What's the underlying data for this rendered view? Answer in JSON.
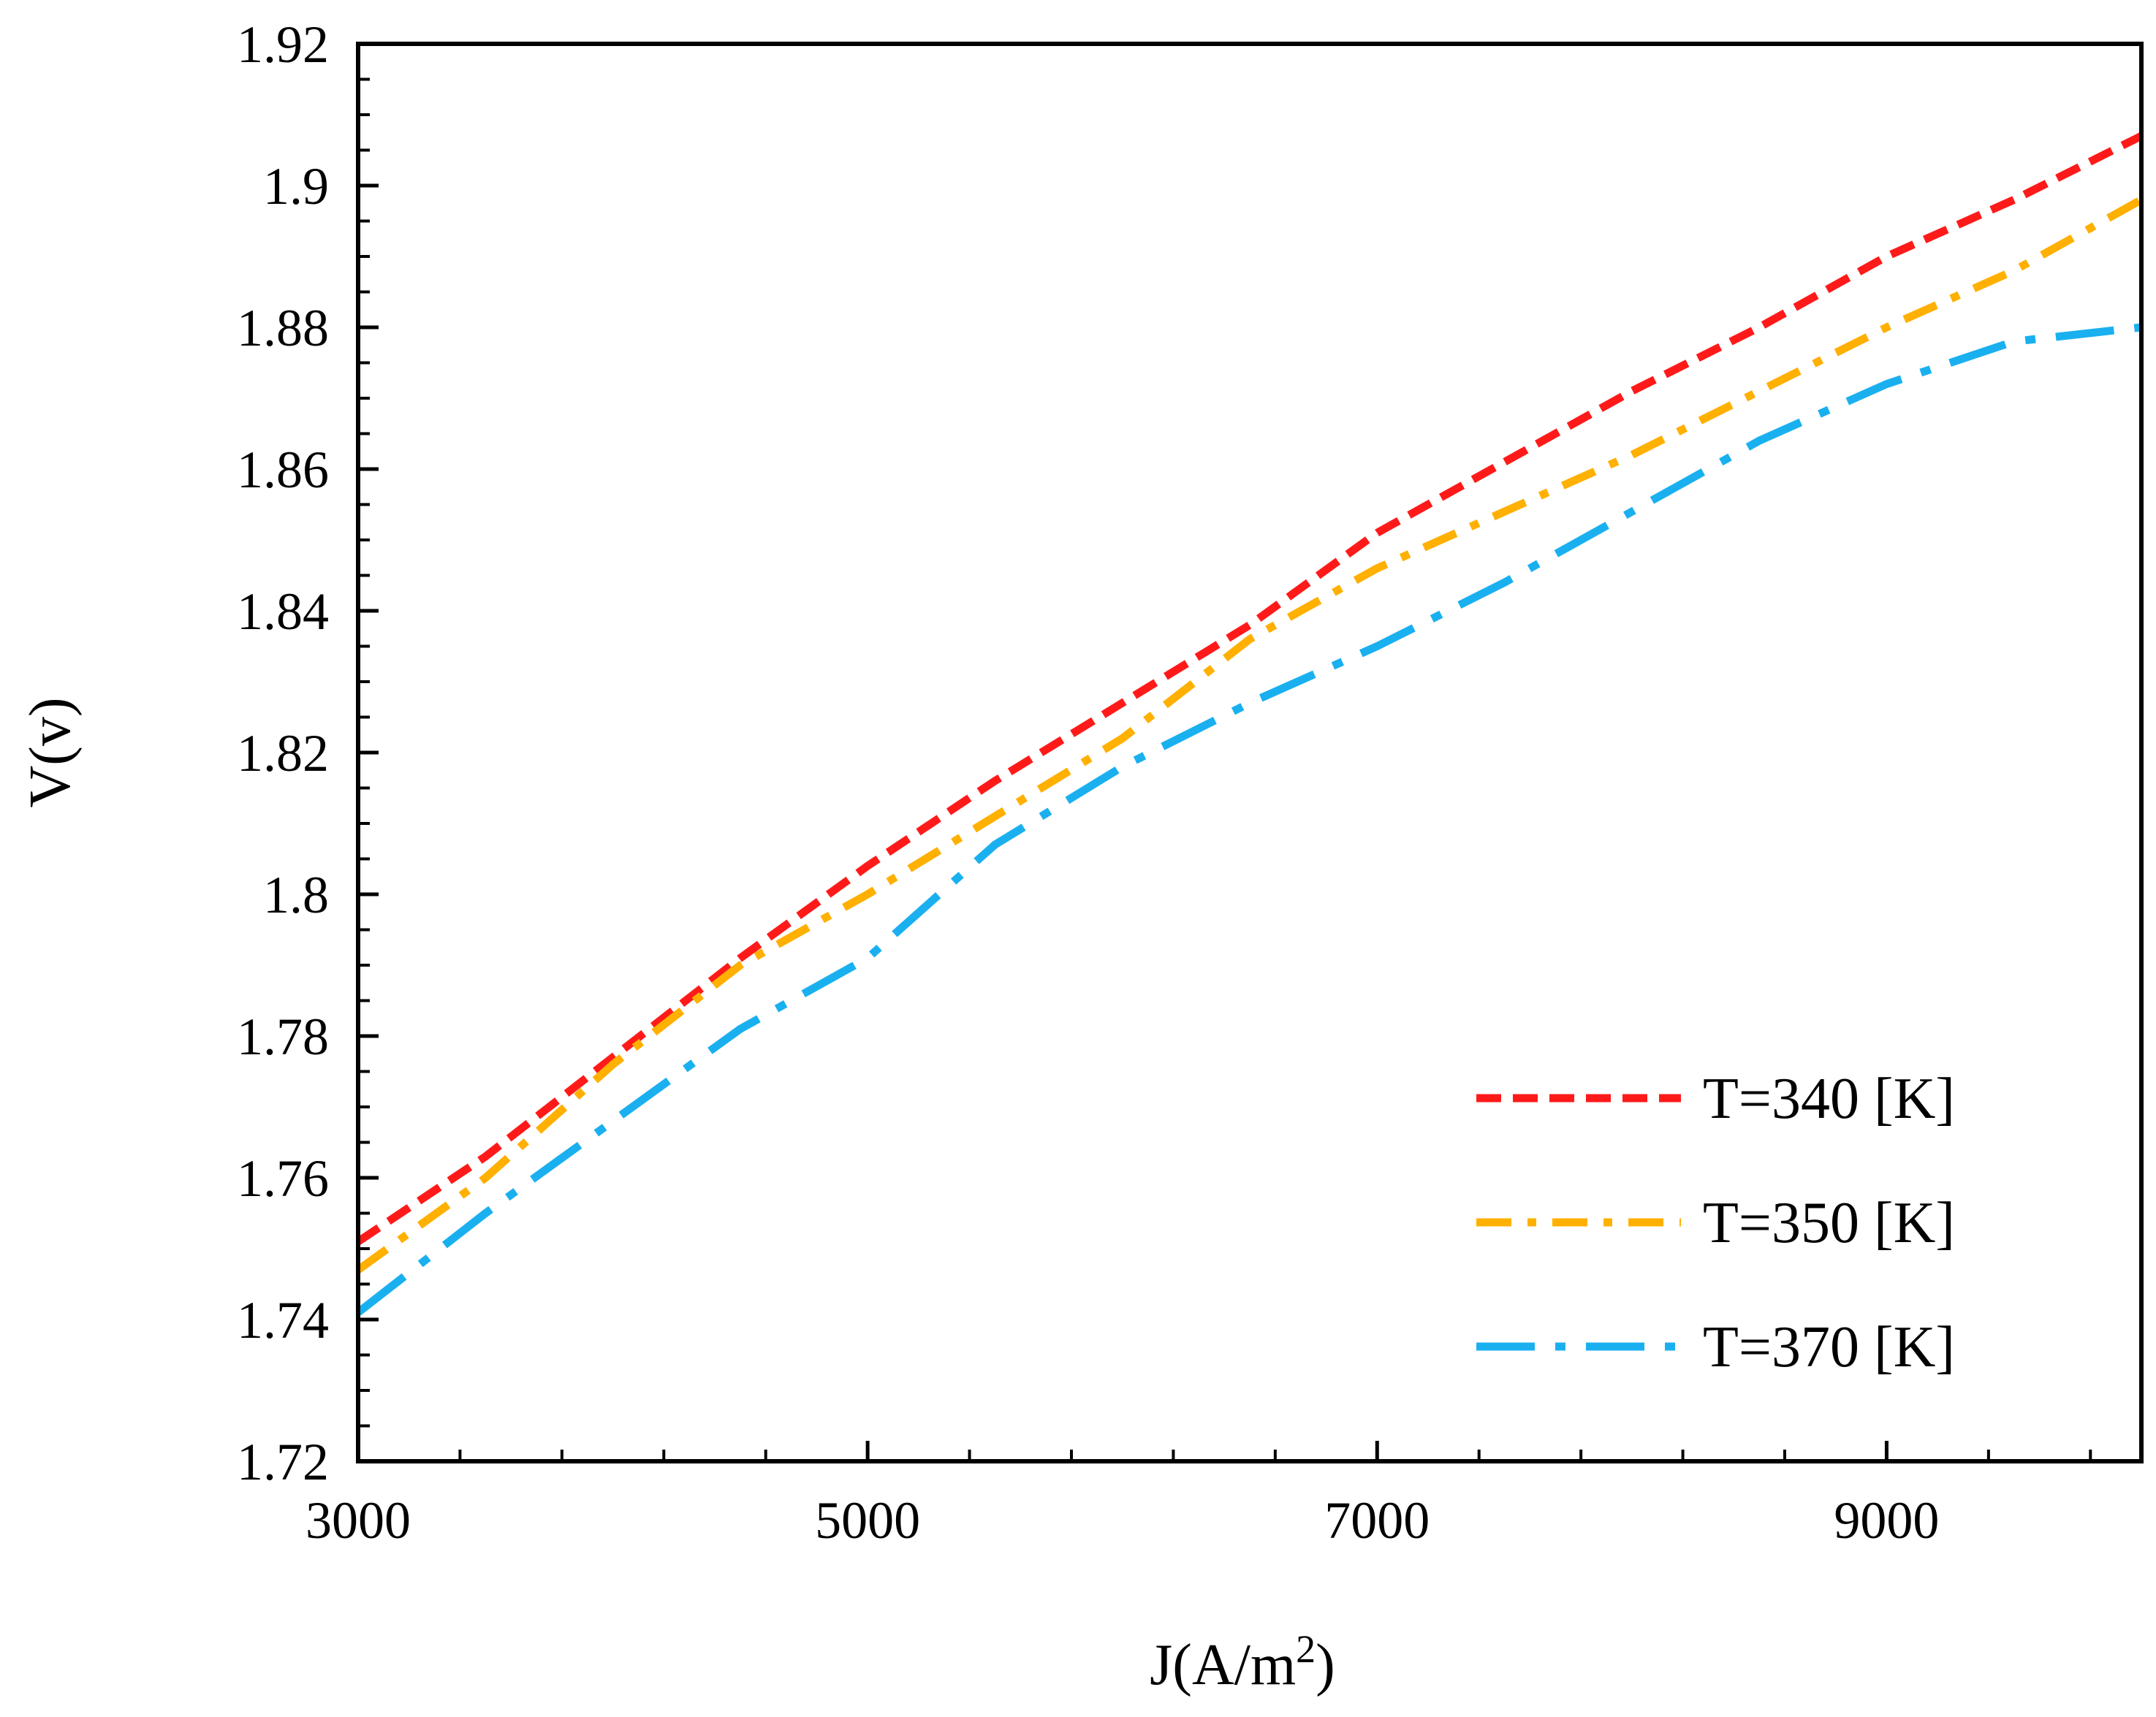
{
  "chart_data": {
    "type": "line",
    "title": "",
    "xlabel": "J(A/m",
    "xlabel_sup": "2",
    "xlabel_close": ")",
    "ylabel": "V(v)",
    "xlim": [
      3000,
      10000
    ],
    "ylim": [
      1.72,
      1.92
    ],
    "x_ticks": [
      3000,
      5000,
      7000,
      9000
    ],
    "x_tick_labels": [
      "3000",
      "5000",
      "7000",
      "9000"
    ],
    "y_ticks": [
      1.72,
      1.74,
      1.76,
      1.78,
      1.8,
      1.82,
      1.84,
      1.86,
      1.88,
      1.9,
      1.92
    ],
    "y_tick_labels": [
      "1.72",
      "1.74",
      "1.76",
      "1.78",
      "1.8",
      "1.82",
      "1.84",
      "1.86",
      "1.88",
      "1.9",
      "1.92"
    ],
    "grid": false,
    "legend_position": "bottom-right",
    "series": [
      {
        "name": "T=340 [K]",
        "color": "#ff1a1a",
        "style": "dashed",
        "x": [
          3000,
          3500,
          4000,
          4500,
          5000,
          5500,
          6000,
          6500,
          7000,
          7500,
          8000,
          8500,
          9000,
          9500,
          10000
        ],
        "y": [
          1.751,
          1.763,
          1.777,
          1.791,
          1.804,
          1.816,
          1.827,
          1.838,
          1.851,
          1.861,
          1.871,
          1.88,
          1.89,
          1.898,
          1.907
        ]
      },
      {
        "name": "T=350 [K]",
        "color": "#ffb000",
        "style": "dash-dot",
        "x": [
          3000,
          3500,
          4000,
          4500,
          5000,
          5500,
          6000,
          6500,
          7000,
          7500,
          8000,
          8500,
          9000,
          9500,
          10000
        ],
        "y": [
          1.747,
          1.76,
          1.776,
          1.79,
          1.8,
          1.811,
          1.822,
          1.836,
          1.846,
          1.854,
          1.862,
          1.871,
          1.88,
          1.888,
          1.898
        ]
      },
      {
        "name": "T=370 [K]",
        "color": "#1ab0f0",
        "style": "long-dash-dot",
        "x": [
          3000,
          3500,
          4000,
          4500,
          5000,
          5500,
          6000,
          6500,
          7000,
          7500,
          8000,
          8500,
          9000,
          9500,
          10000
        ],
        "y": [
          1.741,
          1.755,
          1.768,
          1.781,
          1.791,
          1.807,
          1.818,
          1.827,
          1.835,
          1.844,
          1.854,
          1.864,
          1.872,
          1.878,
          1.88
        ]
      }
    ]
  }
}
